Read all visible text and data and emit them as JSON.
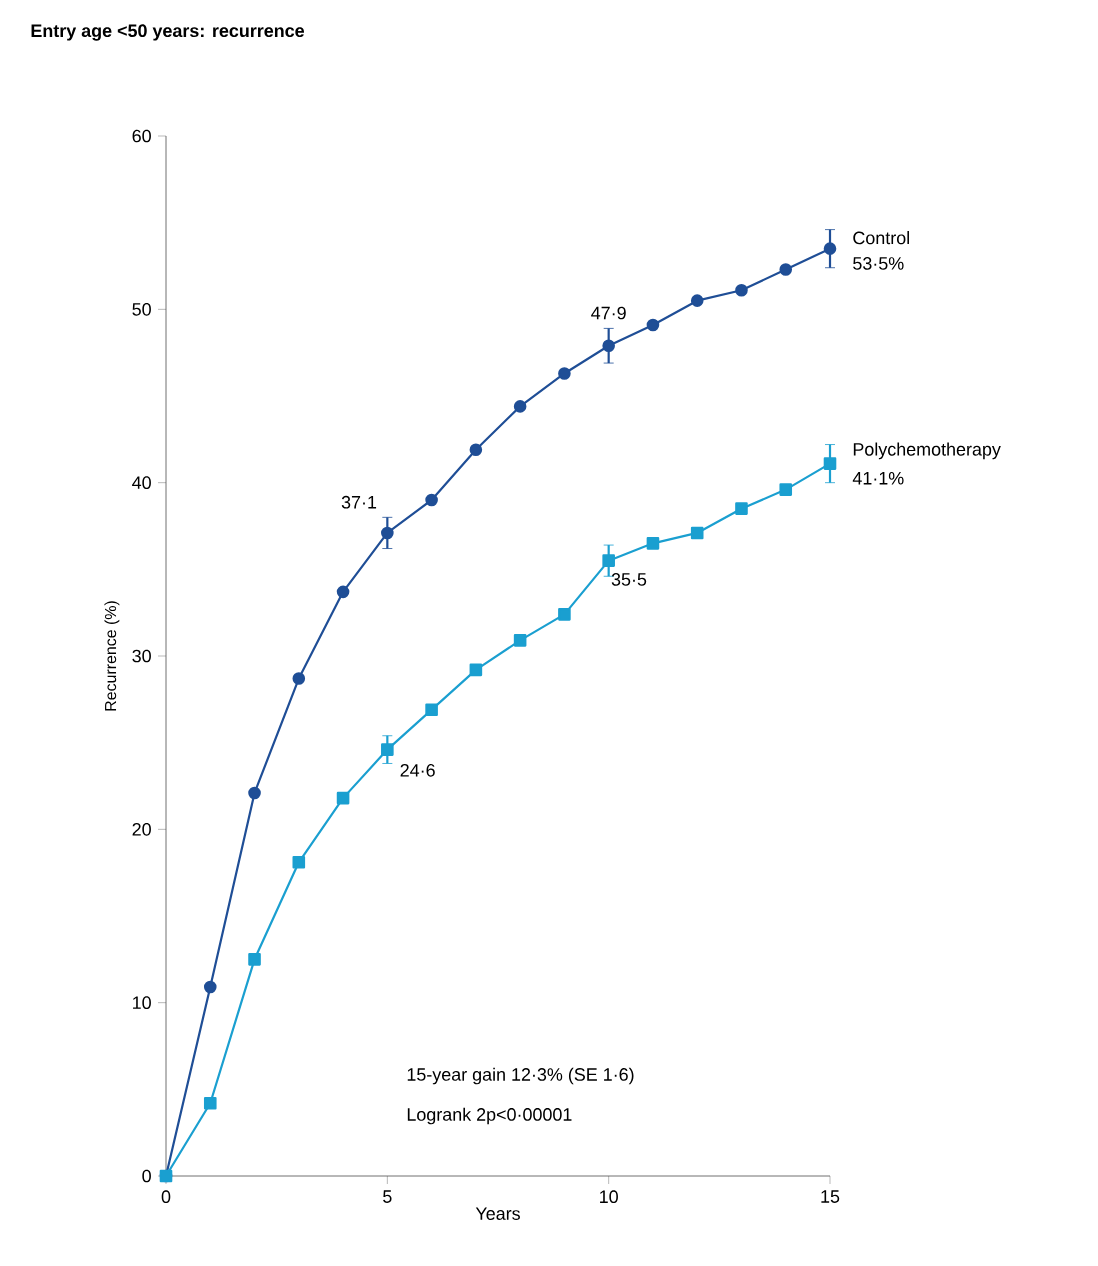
{
  "chart_data": {
    "type": "line",
    "title": "Entry age <50 years: recurrence",
    "xlabel": "Years",
    "ylabel": "Recurrence (%)",
    "x": [
      0,
      1,
      2,
      3,
      4,
      5,
      6,
      7,
      8,
      9,
      10,
      11,
      12,
      13,
      14,
      15
    ],
    "series": [
      {
        "name": "Control",
        "color": "#1f4e96",
        "marker": "circle",
        "values": [
          0,
          10.9,
          22.1,
          28.7,
          33.7,
          37.1,
          39.0,
          41.9,
          44.4,
          46.3,
          47.9,
          49.1,
          50.5,
          51.1,
          52.3,
          53.5
        ],
        "errors": [
          null,
          null,
          null,
          null,
          null,
          0.9,
          null,
          null,
          null,
          null,
          1.0,
          null,
          null,
          null,
          null,
          1.1
        ]
      },
      {
        "name": "Polychemotherapy",
        "color": "#1a9fd0",
        "marker": "square",
        "values": [
          0,
          4.2,
          12.5,
          18.1,
          21.8,
          24.6,
          26.9,
          29.2,
          30.9,
          32.4,
          35.5,
          36.5,
          37.1,
          38.5,
          39.6,
          41.1
        ],
        "errors": [
          null,
          null,
          null,
          null,
          null,
          0.8,
          null,
          null,
          null,
          null,
          0.9,
          null,
          null,
          null,
          null,
          1.1
        ]
      }
    ],
    "xlim": [
      0,
      15
    ],
    "xticks": [
      0,
      5,
      10,
      15
    ],
    "ylim": [
      0,
      60
    ],
    "yticks": [
      0,
      10,
      20,
      30,
      40,
      50,
      60
    ],
    "grid": false,
    "legend": false,
    "line_style": "solid",
    "annotations": [
      {
        "text": "37·1",
        "x": 5,
        "y": 37.1
      },
      {
        "text": "47·9",
        "x": 10,
        "y": 47.9
      },
      {
        "text": "53·5%",
        "x": 15,
        "y": 53.5
      },
      {
        "text": "24·6",
        "x": 5,
        "y": 24.6
      },
      {
        "text": "35·5",
        "x": 10,
        "y": 35.5
      },
      {
        "text": "41·1%",
        "x": 15,
        "y": 41.1
      },
      "15-year gain 12·3% (SE 1·6)",
      "Logrank 2p<0·00001"
    ]
  }
}
